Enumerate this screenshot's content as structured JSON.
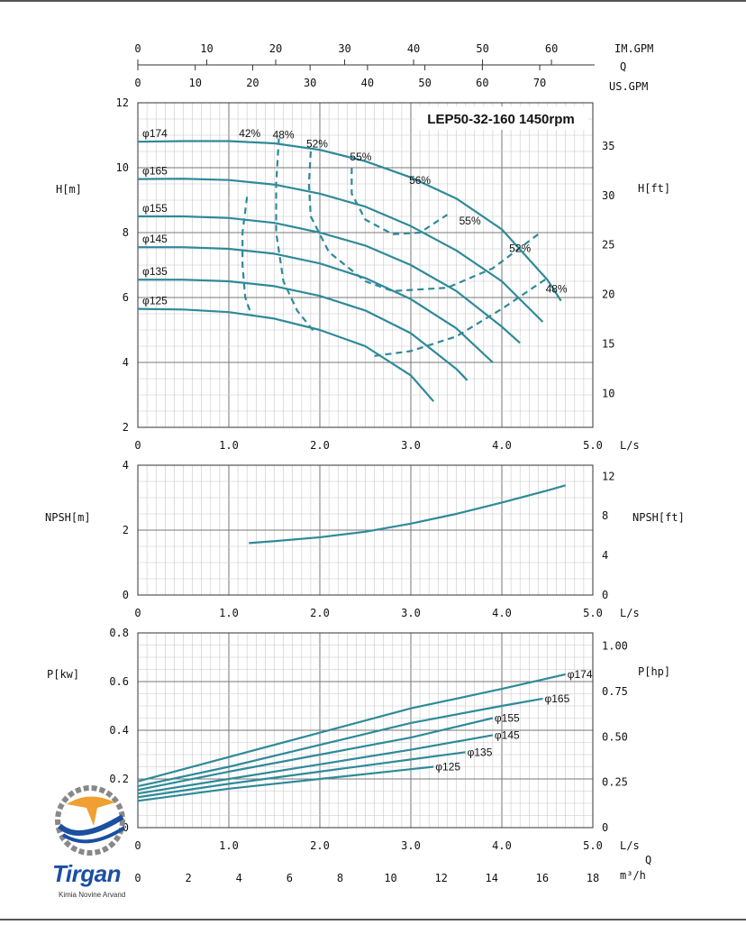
{
  "colors": {
    "curve": "#2e8a99",
    "grid_minor": "#c8c8c8",
    "grid_major": "#777777",
    "logo_blue": "#1b4fa0",
    "logo_orange": "#f0a030"
  },
  "chart_data": [
    {
      "type": "line",
      "title": "LEP50-32-160 1450rpm",
      "xlabel": "L/s",
      "ylabel": "H[m]",
      "y2label": "H[ft]",
      "xlim": [
        0,
        5
      ],
      "ylim": [
        2,
        12
      ],
      "y2lim": [
        6.56,
        39.37
      ],
      "xticks": [
        "0",
        "1.0",
        "2.0",
        "3.0",
        "4.0",
        "5.0"
      ],
      "yticks": [
        "2",
        "4",
        "6",
        "8",
        "10",
        "12"
      ],
      "y2ticks": [
        "10",
        "15",
        "20",
        "25",
        "30",
        "35"
      ],
      "top_axes": [
        {
          "label": "IM.GPM",
          "ticks": [
            "0",
            "10",
            "20",
            "30",
            "40",
            "50",
            "60"
          ],
          "scale_max": 66
        },
        {
          "label": "Q",
          "ticks": []
        },
        {
          "label": "US.GPM",
          "ticks": [
            "0",
            "10",
            "20",
            "30",
            "40",
            "50",
            "60",
            "70"
          ],
          "scale_max": 79.25
        }
      ],
      "series": [
        {
          "name": "φ174",
          "x": [
            0,
            0.5,
            1.0,
            1.5,
            2.0,
            2.5,
            3.0,
            3.5,
            4.0,
            4.5,
            4.65
          ],
          "y": [
            10.8,
            10.82,
            10.82,
            10.75,
            10.55,
            10.2,
            9.7,
            9.05,
            8.1,
            6.55,
            5.9
          ]
        },
        {
          "name": "φ165",
          "x": [
            0,
            0.5,
            1.0,
            1.5,
            2.0,
            2.5,
            3.0,
            3.5,
            4.0,
            4.45
          ],
          "y": [
            9.65,
            9.66,
            9.62,
            9.48,
            9.2,
            8.8,
            8.2,
            7.45,
            6.5,
            5.25
          ]
        },
        {
          "name": "φ155",
          "x": [
            0,
            0.5,
            1.0,
            1.5,
            2.0,
            2.5,
            3.0,
            3.5,
            4.0,
            4.2
          ],
          "y": [
            8.5,
            8.5,
            8.45,
            8.3,
            8.0,
            7.6,
            7.0,
            6.2,
            5.1,
            4.6
          ]
        },
        {
          "name": "φ145",
          "x": [
            0,
            0.5,
            1.0,
            1.5,
            2.0,
            2.5,
            3.0,
            3.5,
            3.9
          ],
          "y": [
            7.55,
            7.55,
            7.5,
            7.35,
            7.05,
            6.6,
            5.95,
            5.05,
            4.0
          ]
        },
        {
          "name": "φ135",
          "x": [
            0,
            0.5,
            1.0,
            1.5,
            2.0,
            2.5,
            3.0,
            3.5,
            3.62
          ],
          "y": [
            6.55,
            6.55,
            6.5,
            6.35,
            6.05,
            5.6,
            4.9,
            3.8,
            3.45
          ]
        },
        {
          "name": "φ125",
          "x": [
            0,
            0.5,
            1.0,
            1.5,
            2.0,
            2.5,
            3.0,
            3.25
          ],
          "y": [
            5.65,
            5.63,
            5.55,
            5.35,
            5.0,
            4.5,
            3.6,
            2.8
          ]
        }
      ],
      "efficiency_contours": [
        {
          "name": "42%",
          "x": [
            1.2,
            1.15,
            1.15,
            1.18,
            1.25
          ],
          "y": [
            9.1,
            8.0,
            7.0,
            6.0,
            5.45
          ]
        },
        {
          "name": "48%",
          "x": [
            1.55,
            1.52,
            1.52,
            1.6,
            1.75,
            1.95
          ],
          "y": [
            10.9,
            9.5,
            8.0,
            6.5,
            5.6,
            4.9
          ]
        },
        {
          "name": "52%",
          "x": [
            1.9,
            1.88,
            1.9,
            2.1,
            2.5,
            2.8,
            3.4,
            3.9,
            4.4
          ],
          "y": [
            10.5,
            9.5,
            8.5,
            7.4,
            6.5,
            6.2,
            6.3,
            6.9,
            7.95
          ]
        },
        {
          "name": "55%",
          "x": [
            2.35,
            2.35,
            2.5,
            2.8,
            3.1,
            3.4
          ],
          "y": [
            10.0,
            9.2,
            8.4,
            7.95,
            8.0,
            8.55
          ]
        },
        {
          "name": "56%",
          "x": [],
          "y": []
        },
        {
          "name": "48%",
          "x": [
            2.6,
            3.0,
            3.5,
            4.0,
            4.5
          ],
          "y": [
            4.2,
            4.35,
            4.8,
            5.65,
            6.6
          ]
        }
      ],
      "efficiency_labels": [
        "42%",
        "48%",
        "52%",
        "55%",
        "56%",
        "55%",
        "52%",
        "48%"
      ],
      "diameter_labels": [
        "φ174",
        "φ165",
        "φ155",
        "φ145",
        "φ135",
        "φ125"
      ]
    },
    {
      "type": "line",
      "xlabel": "L/s",
      "ylabel": "NPSH[m]",
      "y2label": "NPSH[ft]",
      "xlim": [
        0,
        5
      ],
      "ylim": [
        0,
        4
      ],
      "y2lim": [
        0,
        13.12
      ],
      "xticks": [
        "0",
        "1.0",
        "2.0",
        "3.0",
        "4.0",
        "5.0"
      ],
      "yticks": [
        "0",
        "2",
        "4"
      ],
      "y2ticks": [
        "0",
        "4",
        "8",
        "12"
      ],
      "series": [
        {
          "x": [
            1.22,
            1.5,
            2.0,
            2.5,
            3.0,
            3.5,
            4.0,
            4.5,
            4.7
          ],
          "y": [
            1.6,
            1.66,
            1.78,
            1.95,
            2.2,
            2.5,
            2.85,
            3.22,
            3.38
          ]
        }
      ]
    },
    {
      "type": "line",
      "xlabel": "L/s",
      "ylabel": "P[kw]",
      "y2label": "P[hp]",
      "xlim": [
        0,
        5
      ],
      "ylim": [
        0,
        0.8
      ],
      "y2lim": [
        0,
        1.073
      ],
      "xticks": [
        "0",
        "1.0",
        "2.0",
        "3.0",
        "4.0",
        "5.0"
      ],
      "yticks": [
        "0",
        "0.2",
        "0.4",
        "0.6",
        "0.8"
      ],
      "y2ticks": [
        "0",
        "0.25",
        "0.50",
        "0.75",
        "1.00"
      ],
      "bottom_axis": {
        "label": "m³/h",
        "label2": "Q",
        "ticks": [
          "0",
          "2",
          "4",
          "6",
          "8",
          "10",
          "12",
          "14",
          "16",
          "18"
        ],
        "scale_max": 18
      },
      "series": [
        {
          "name": "φ174",
          "x": [
            0,
            1,
            2,
            3,
            4,
            4.7
          ],
          "y": [
            0.19,
            0.29,
            0.39,
            0.49,
            0.57,
            0.63
          ]
        },
        {
          "name": "φ165",
          "x": [
            0,
            1,
            2,
            3,
            4,
            4.45
          ],
          "y": [
            0.17,
            0.25,
            0.34,
            0.43,
            0.5,
            0.53
          ]
        },
        {
          "name": "φ155",
          "x": [
            0,
            1,
            2,
            3,
            3.9
          ],
          "y": [
            0.155,
            0.23,
            0.3,
            0.37,
            0.45
          ]
        },
        {
          "name": "φ145",
          "x": [
            0,
            1,
            2,
            3,
            3.9
          ],
          "y": [
            0.14,
            0.2,
            0.26,
            0.32,
            0.38
          ]
        },
        {
          "name": "φ135",
          "x": [
            0,
            1,
            2,
            3,
            3.6
          ],
          "y": [
            0.125,
            0.18,
            0.23,
            0.28,
            0.31
          ]
        },
        {
          "name": "φ125",
          "x": [
            0,
            1,
            2,
            3,
            3.25
          ],
          "y": [
            0.11,
            0.16,
            0.2,
            0.24,
            0.25
          ]
        }
      ]
    }
  ],
  "logo": {
    "brand": "Tirgan",
    "tagline": "Kimia Novine Arvand"
  }
}
